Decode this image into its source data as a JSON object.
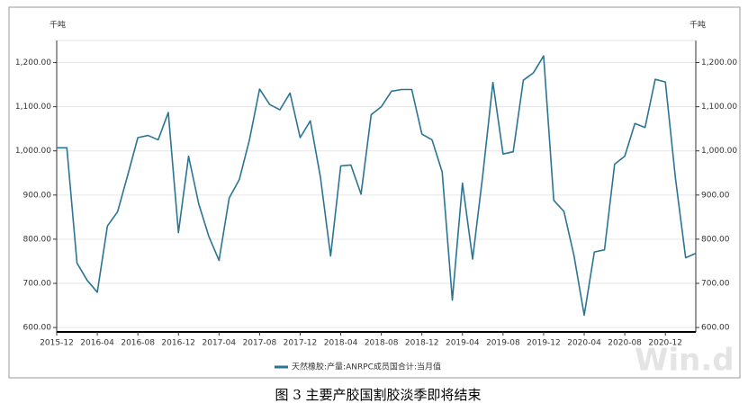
{
  "chart_data": {
    "type": "line",
    "y_unit": "千吨",
    "y2_unit": "千吨",
    "caption": "图 3  主要产胶国割胶淡季即将结束",
    "watermark": "Win.d",
    "categories": [
      "2015-12",
      null,
      null,
      null,
      "2016-04",
      null,
      null,
      null,
      "2016-08",
      null,
      null,
      null,
      "2016-12",
      null,
      null,
      null,
      "2017-04",
      null,
      null,
      null,
      "2017-08",
      null,
      null,
      null,
      "2017-12",
      null,
      null,
      null,
      "2018-04",
      null,
      null,
      null,
      "2018-08",
      null,
      null,
      null,
      "2018-12",
      null,
      null,
      null,
      "2019-04",
      null,
      null,
      null,
      "2019-08",
      null,
      null,
      null,
      "2019-12",
      null,
      null,
      null,
      "2020-04",
      null,
      null,
      null,
      "2020-08",
      null,
      null,
      null,
      "2020-12",
      null,
      null,
      null
    ],
    "series": [
      {
        "name": "天然橡胶:产量:ANRPC成员国合计:当月值",
        "color": "#2b7592",
        "values": [
          1007,
          1007,
          746,
          707,
          680,
          830,
          862,
          945,
          1030,
          1035,
          1025,
          1087,
          815,
          988,
          880,
          806,
          752,
          893,
          935,
          1025,
          1140,
          1105,
          1093,
          1131,
          1030,
          1068,
          940,
          762,
          966,
          968,
          902,
          1082,
          1100,
          1135,
          1139,
          1139,
          1038,
          1025,
          952,
          662,
          927,
          755,
          945,
          1155,
          993,
          998,
          1160,
          1177,
          1215,
          888,
          863,
          762,
          628,
          771,
          776,
          970,
          988,
          1062,
          1053,
          1162,
          1156,
          937,
          758,
          768
        ]
      }
    ],
    "ylim": [
      590,
      1250
    ],
    "yticks": [
      {
        "value": 600,
        "label": "600.00"
      },
      {
        "value": 700,
        "label": "700.00"
      },
      {
        "value": 800,
        "label": "800.00"
      },
      {
        "value": 900,
        "label": "900.00"
      },
      {
        "value": 1000,
        "label": "1,000.00"
      },
      {
        "value": 1100,
        "label": "1,100.00"
      },
      {
        "value": 1200,
        "label": "1,200.00"
      }
    ],
    "y2lim": [
      590,
      1250
    ],
    "y2ticks": [
      {
        "value": 600,
        "label": "600.00"
      },
      {
        "value": 700,
        "label": "700.00"
      },
      {
        "value": 800,
        "label": "800.00"
      },
      {
        "value": 900,
        "label": "900.00"
      },
      {
        "value": 1000,
        "label": "1,000.00"
      },
      {
        "value": 1100,
        "label": "1,100.00"
      },
      {
        "value": 1200,
        "label": "1,200.00"
      }
    ],
    "grid": true
  }
}
